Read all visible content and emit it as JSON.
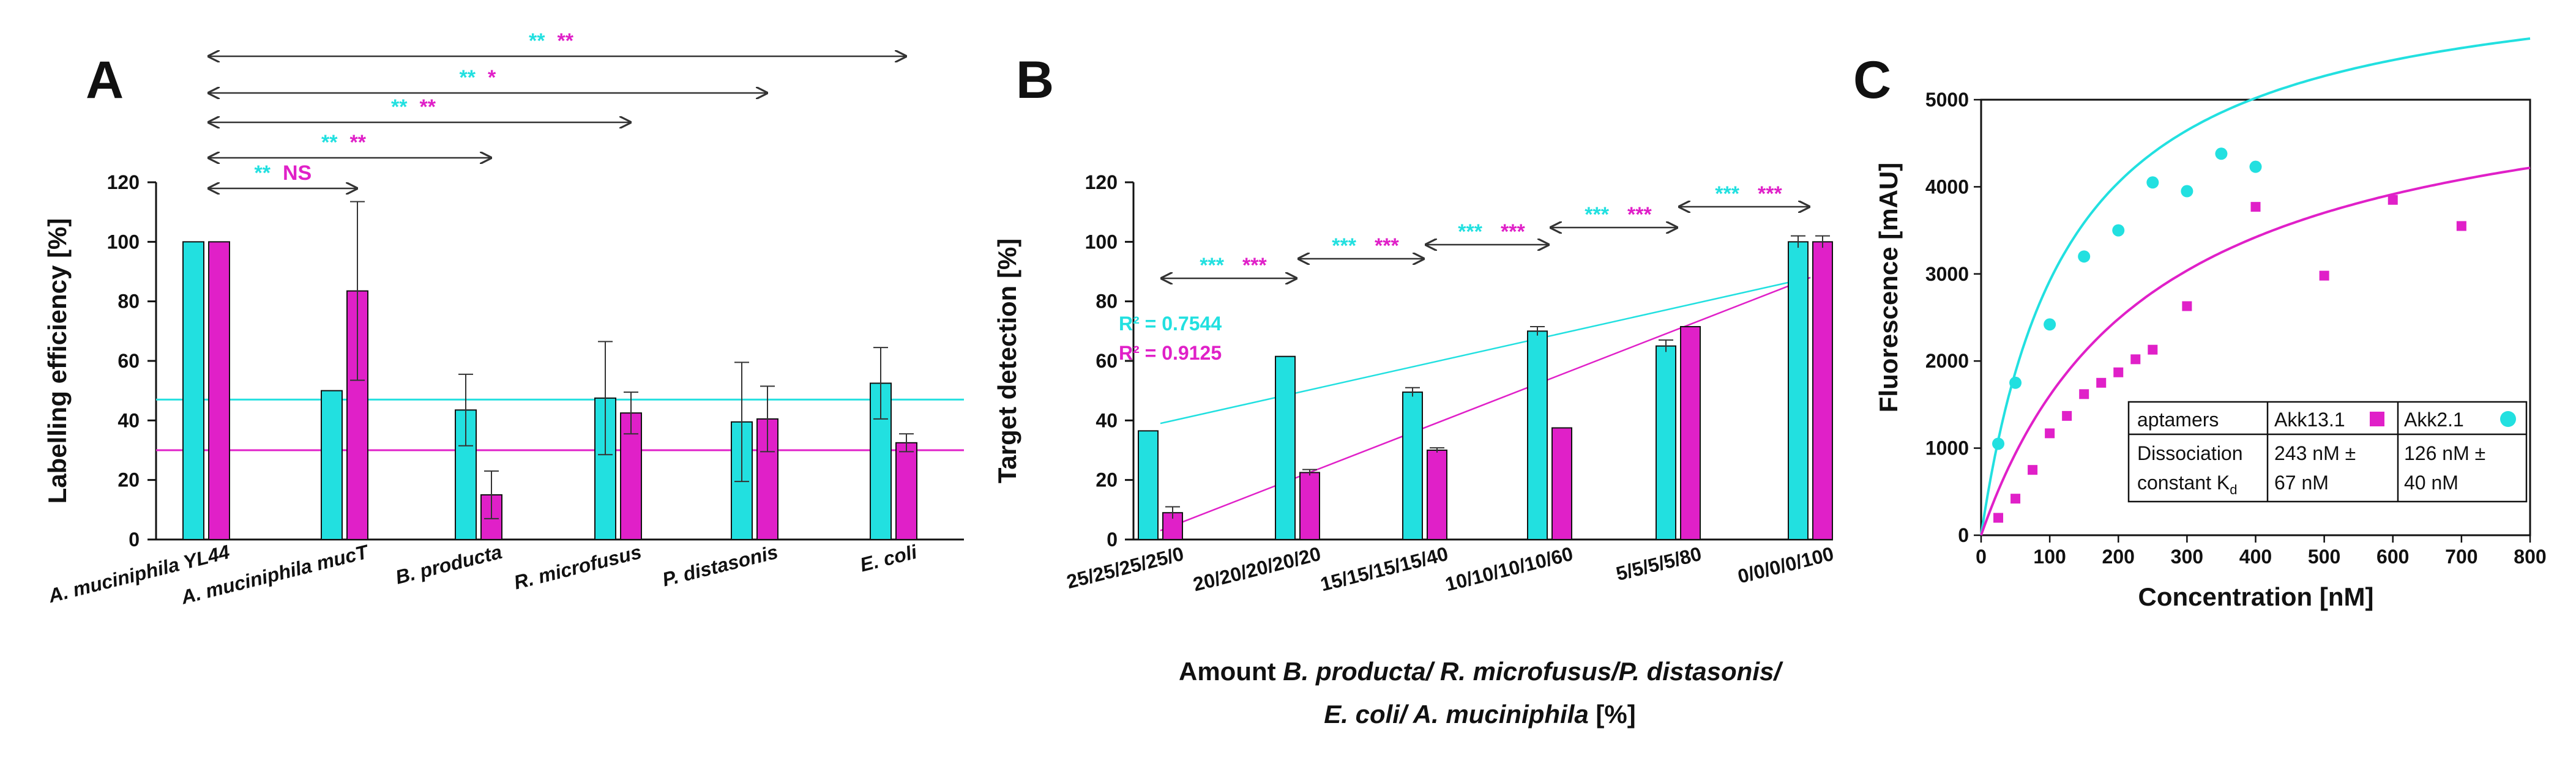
{
  "colors": {
    "cyan": "#22e0e0",
    "magenta": "#e020c8",
    "axis": "#111111",
    "dark": "#333333"
  },
  "chart_data": [
    {
      "type": "bar",
      "panel": "A",
      "ylabel": "Labelling efficiency [%]",
      "ylim": [
        0,
        120
      ],
      "yticks": [
        "0",
        "20",
        "40",
        "60",
        "80",
        "100",
        "120"
      ],
      "categories": [
        "A. muciniphila YL44",
        "A. muciniphila mucT",
        "B. producta",
        "R. microfusus",
        "P. distasonis",
        "E. coli"
      ],
      "series": [
        {
          "name": "Akk2.1",
          "color": "cyan",
          "values": [
            100,
            50,
            43.5,
            47.5,
            39.5,
            52.5
          ],
          "errors": [
            0,
            0,
            12,
            19,
            20,
            12
          ]
        },
        {
          "name": "Akk13.1",
          "color": "magenta",
          "values": [
            100,
            83.5,
            15,
            42.5,
            40.5,
            32.5
          ],
          "errors": [
            0,
            30,
            8,
            7,
            11,
            3
          ]
        }
      ],
      "reference_lines": [
        {
          "color": "cyan",
          "value": 47
        },
        {
          "color": "magenta",
          "value": 30
        }
      ],
      "significance": [
        {
          "to_category": 1,
          "left": "**",
          "right": "NS"
        },
        {
          "to_category": 2,
          "left": "**",
          "right": "**"
        },
        {
          "to_category": 3,
          "left": "**",
          "right": "**"
        },
        {
          "to_category": 4,
          "left": "**",
          "right": "*"
        },
        {
          "to_category": 5,
          "left": "**",
          "right": "**"
        }
      ]
    },
    {
      "type": "bar",
      "panel": "B",
      "ylabel": "Target detection [%]",
      "xlabel_prefix": "Amount ",
      "xlabel_italic": "B. producta/ R. microfusus/P. distasonis/",
      "xlabel_line2_italic": "E. coli/ A. muciniphila",
      "xlabel_suffix": " [%]",
      "ylim": [
        0,
        120
      ],
      "yticks": [
        "0",
        "20",
        "40",
        "60",
        "80",
        "100",
        "120"
      ],
      "categories": [
        "25/25/25/25/0",
        "20/20/20/20/20",
        "15/15/15/15/40",
        "10/10/10/10/60",
        "5/5/5/5/80",
        "0/0/0/0/100"
      ],
      "series": [
        {
          "name": "Akk2.1",
          "color": "cyan",
          "values": [
            36.5,
            61.5,
            49.5,
            70,
            65,
            100
          ],
          "errors": [
            0,
            0,
            1.5,
            1.5,
            2,
            2
          ]
        },
        {
          "name": "Akk13.1",
          "color": "magenta",
          "values": [
            9,
            22.5,
            30,
            37.5,
            71.5,
            100
          ],
          "errors": [
            2,
            1,
            0.8,
            0,
            0,
            2
          ]
        }
      ],
      "trendlines": [
        {
          "color": "cyan",
          "label": "R² = 0.7544",
          "start": 39,
          "end": 88
        },
        {
          "color": "magenta",
          "label": "R² = 0.9125",
          "start": 3,
          "end": 88
        }
      ],
      "significance": [
        {
          "from": 0,
          "to": 1,
          "left": "***",
          "right": "***"
        },
        {
          "from": 1,
          "to": 2,
          "left": "***",
          "right": "***"
        },
        {
          "from": 2,
          "to": 3,
          "left": "***",
          "right": "***"
        },
        {
          "from": 3,
          "to": 4,
          "left": "***",
          "right": "***"
        },
        {
          "from": 4,
          "to": 5,
          "left": "***",
          "right": "***"
        }
      ]
    },
    {
      "type": "scatter",
      "panel": "C",
      "xlabel": "Concentration [nM]",
      "ylabel": "Fluorescence [mAU]",
      "xlim": [
        0,
        800
      ],
      "ylim": [
        0,
        5000
      ],
      "xticks": [
        "0",
        "100",
        "200",
        "300",
        "400",
        "500",
        "600",
        "700",
        "800"
      ],
      "yticks": [
        "0",
        "1000",
        "2000",
        "3000",
        "4000",
        "5000"
      ],
      "series": [
        {
          "name": "Akk2.1",
          "color": "cyan",
          "marker": "circle",
          "kd": 126,
          "bmax": 6600,
          "x": [
            25,
            50,
            100,
            150,
            200,
            250,
            300,
            350,
            400
          ],
          "y": [
            1050,
            1750,
            2420,
            3200,
            3500,
            4050,
            3950,
            4380,
            4230
          ]
        },
        {
          "name": "Akk13.1",
          "color": "magenta",
          "marker": "square",
          "kd": 243,
          "bmax": 5500,
          "x": [
            25,
            50,
            75,
            100,
            125,
            150,
            175,
            200,
            225,
            250,
            300,
            400,
            500,
            600,
            700
          ],
          "y": [
            200,
            420,
            750,
            1170,
            1370,
            1620,
            1750,
            1870,
            2020,
            2130,
            2630,
            3770,
            2980,
            3850,
            3550
          ]
        }
      ],
      "table": {
        "header": "aptamers",
        "col1_head": "Akk13.1",
        "col2_head": "Akk2.1",
        "row_label_1": "Dissociation",
        "row_label_2": "constant K",
        "row_label_sub": "d",
        "col1_line1": "243 nM ±",
        "col1_line2": "67 nM",
        "col2_line1": "126 nM ±",
        "col2_line2": "40 nM"
      }
    }
  ]
}
